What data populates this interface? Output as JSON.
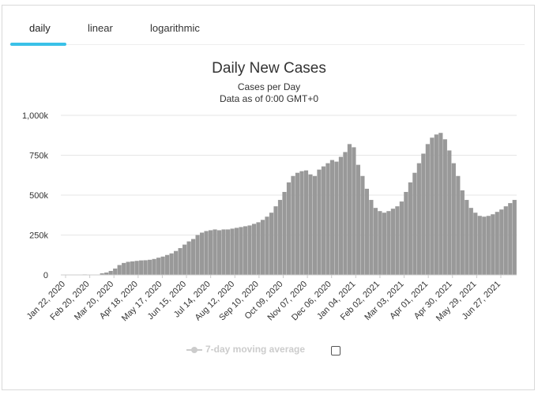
{
  "tabs": [
    {
      "label": "daily"
    },
    {
      "label": "linear"
    },
    {
      "label": "logarithmic"
    }
  ],
  "legend": {
    "label": "7-day moving average",
    "checked": false
  },
  "colors": {
    "bar": "#999999",
    "grid": "#e6e6e6",
    "axis_text": "#333333",
    "tab_indicator": "#3ac1e8",
    "legend_inactive": "#cccccc"
  },
  "chart_data": {
    "type": "bar",
    "title": "Daily New Cases",
    "subtitle": [
      "Cases per Day",
      "Data as of 0:00 GMT+0"
    ],
    "xlabel": "",
    "ylabel": "",
    "ylim": [
      0,
      1000000
    ],
    "yticks": [
      {
        "value": 0,
        "label": "0"
      },
      {
        "value": 250000,
        "label": "250k"
      },
      {
        "value": 500000,
        "label": "500k"
      },
      {
        "value": 750000,
        "label": "750k"
      },
      {
        "value": 1000000,
        "label": "1,000k"
      }
    ],
    "xticks": [
      "Jan 22, 2020",
      "Feb 20, 2020",
      "Mar 20, 2020",
      "Apr 18, 2020",
      "May 17, 2020",
      "Jun 15, 2020",
      "Jul 14, 2020",
      "Aug 12, 2020",
      "Sep 10, 2020",
      "Oct 09, 2020",
      "Nov 07, 2020",
      "Dec 06, 2020",
      "Jan 04, 2021",
      "Feb 02, 2021",
      "Mar 03, 2021",
      "Apr 01, 2021",
      "Apr 30, 2021",
      "May 29, 2021",
      "Jun 27, 2021"
    ],
    "series": [
      {
        "values": [
          0,
          0,
          0,
          0,
          0,
          3000,
          2000,
          0,
          0,
          10000,
          15000,
          25000,
          40000,
          62000,
          75000,
          82000,
          85000,
          88000,
          91000,
          92000,
          95000,
          100000,
          108000,
          115000,
          125000,
          135000,
          150000,
          168000,
          190000,
          210000,
          225000,
          250000,
          265000,
          275000,
          280000,
          285000,
          280000,
          285000,
          285000,
          290000,
          295000,
          300000,
          305000,
          310000,
          320000,
          330000,
          345000,
          365000,
          390000,
          430000,
          470000,
          520000,
          580000,
          620000,
          640000,
          650000,
          655000,
          630000,
          620000,
          660000,
          680000,
          700000,
          720000,
          710000,
          740000,
          770000,
          820000,
          800000,
          690000,
          620000,
          540000,
          470000,
          420000,
          400000,
          390000,
          400000,
          415000,
          430000,
          460000,
          520000,
          580000,
          640000,
          700000,
          760000,
          820000,
          860000,
          880000,
          890000,
          850000,
          780000,
          700000,
          620000,
          530000,
          470000,
          420000,
          390000,
          370000,
          365000,
          370000,
          380000,
          395000,
          410000,
          430000,
          450000,
          470000
        ],
        "note": "approximate daily new cases, ~5-day sampling from Jan 22, 2020 to mid-Jul 2021"
      }
    ],
    "grid": true,
    "legend_position": "bottom"
  }
}
